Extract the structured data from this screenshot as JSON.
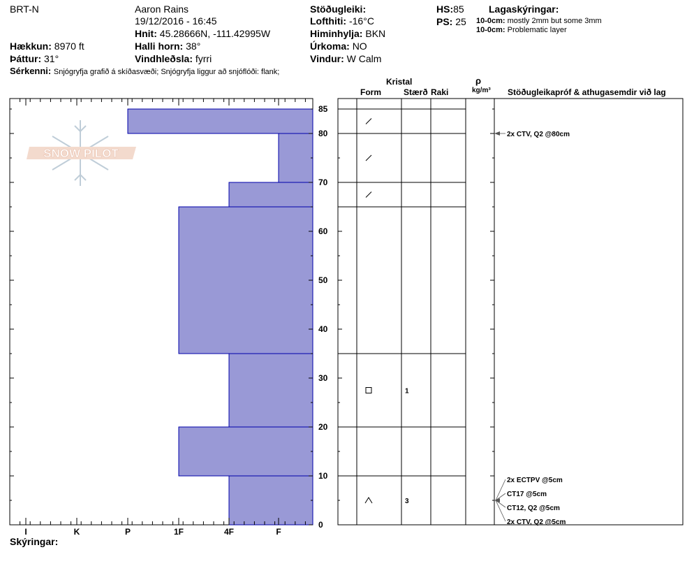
{
  "header": {
    "location": "BRT-N",
    "observer": "Aaron Rains",
    "datetime": "19/12/2016 - 16:45",
    "coords_label": "Hnit:",
    "coords": "45.28666N, -111.42995W",
    "elevation_label": "Hækkun:",
    "elevation": "8970 ft",
    "aspect_label": "Þáttur:",
    "aspect": "31°",
    "slope_label": "Halli horn:",
    "slope": "38°",
    "wind_loading_label": "Vindhleðsla:",
    "wind_loading": "fyrri",
    "stability_label": "Stöðugleiki:",
    "stability": "",
    "air_temp_label": "Lofthiti:",
    "air_temp": "-16°C",
    "sky_label": "Himinhylja:",
    "sky": "BKN",
    "precip_label": "Úrkoma:",
    "precip": "NO",
    "wind_label": "Vindur:",
    "wind": "W Calm",
    "hs_label": "HS:",
    "hs": "85",
    "ps_label": "PS:",
    "ps": "25",
    "layer_notes_label": "Lagaskýringar:",
    "layer_notes": [
      {
        "range": "10-0cm:",
        "text": "mostly 2mm but some 3mm"
      },
      {
        "range": "10-0cm:",
        "text": "Problematic layer"
      }
    ],
    "features_label": "Sérkenni:",
    "features": "Snjógryfja grafið á skíðasvæði; Snjógryfja liggur að snjóflóði: flank;"
  },
  "logo": {
    "text": "SNOW PILOT"
  },
  "table_headers": {
    "crystal": "Kristal",
    "form": "Form",
    "size": "Stærð",
    "moisture": "Raki",
    "rho": "ρ",
    "density_unit": "kg/m³",
    "tests": "Stöðugleikapróf & athugasemdir við lag"
  },
  "footer": {
    "notes_label": "Skýringar:"
  },
  "chart_data": {
    "type": "bar",
    "orientation": "horizontal",
    "x_categories": [
      "I",
      "K",
      "P",
      "1F",
      "4F",
      "F"
    ],
    "y_ticks": [
      0,
      10,
      20,
      30,
      40,
      50,
      60,
      70,
      80,
      85
    ],
    "ylim": [
      0,
      85
    ],
    "hardness_layers": [
      {
        "bottom": 80,
        "top": 85,
        "hardness": "P"
      },
      {
        "bottom": 70,
        "top": 80,
        "hardness": "F"
      },
      {
        "bottom": 65,
        "top": 70,
        "hardness": "4F"
      },
      {
        "bottom": 35,
        "top": 65,
        "hardness": "1F"
      },
      {
        "bottom": 20,
        "top": 35,
        "hardness": "4F"
      },
      {
        "bottom": 10,
        "top": 20,
        "hardness": "1F"
      },
      {
        "bottom": 0,
        "top": 10,
        "hardness": "4F"
      }
    ],
    "layer_boundaries": [
      85,
      80,
      70,
      65,
      35,
      20,
      10,
      0
    ],
    "layer_details": [
      {
        "mid": 82.5,
        "form": "/",
        "size": ""
      },
      {
        "mid": 75,
        "form": "/",
        "size": ""
      },
      {
        "mid": 67.5,
        "form": "/",
        "size": ""
      },
      {
        "mid": 27.5,
        "form": "□",
        "size": "1"
      },
      {
        "mid": 5,
        "form": "∧",
        "size": "3"
      }
    ],
    "tests": [
      {
        "depth": 80,
        "text": "2x CTV, Q2 @80cm"
      },
      {
        "depth": 5,
        "text": "2x ECTPV @5cm"
      },
      {
        "depth": 5,
        "text": "CT17 @5cm"
      },
      {
        "depth": 5,
        "text": "CT12, Q2 @5cm"
      },
      {
        "depth": 5,
        "text": "2x CTV, Q2 @5cm"
      }
    ],
    "bar_color": "#9999d6",
    "bar_edge_color": "#0000aa"
  }
}
